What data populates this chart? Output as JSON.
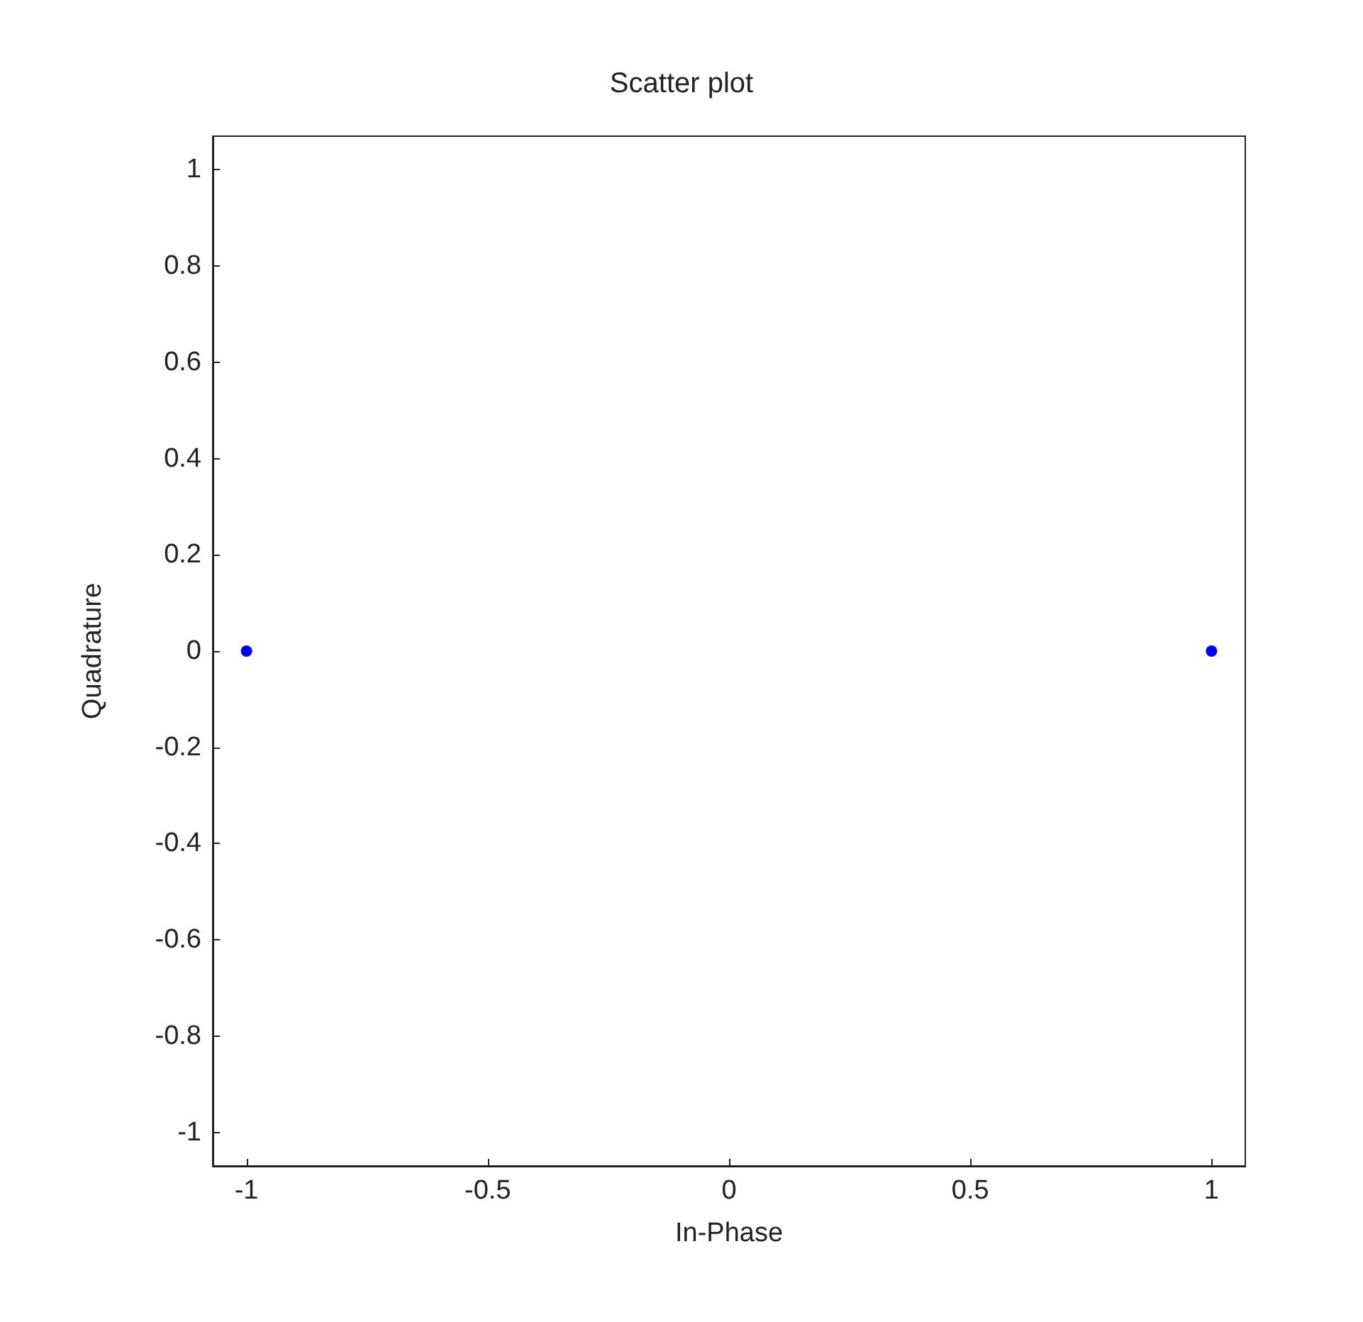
{
  "chart_data": {
    "type": "scatter",
    "title": "Scatter plot",
    "xlabel": "In-Phase",
    "ylabel": "Quadrature",
    "x": [
      -1,
      1
    ],
    "series": [
      {
        "color": "#0000ff",
        "values": [
          0,
          0
        ]
      }
    ],
    "xlim": [
      -1.07,
      1.07
    ],
    "ylim": [
      -1.07,
      1.07
    ],
    "xticks": [
      -1,
      -0.5,
      0,
      0.5,
      1
    ],
    "yticks": [
      -1,
      -0.8,
      -0.6,
      -0.4,
      -0.2,
      0,
      0.2,
      0.4,
      0.6,
      0.8,
      1
    ],
    "grid": false,
    "marker": "circle"
  }
}
